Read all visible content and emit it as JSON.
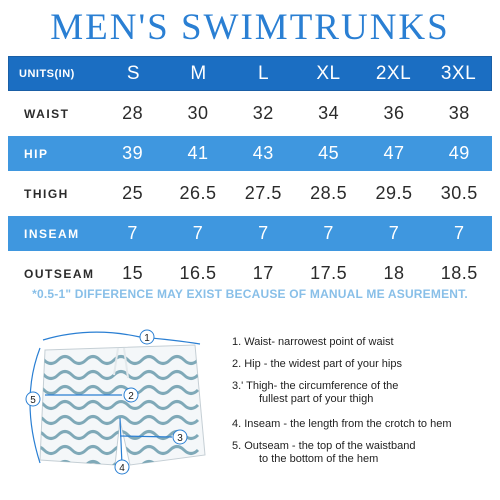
{
  "title": "MEN'S SWIMTRUNKS",
  "table": {
    "header": {
      "label": "UNITS(IN)",
      "values": [
        "S",
        "M",
        "L",
        "XL",
        "2XL",
        "3XL"
      ]
    },
    "rows": [
      {
        "label": "WAIST",
        "values": [
          "28",
          "30",
          "32",
          "34",
          "36",
          "38"
        ]
      },
      {
        "label": "HIP",
        "values": [
          "39",
          "41",
          "43",
          "45",
          "47",
          "49"
        ]
      },
      {
        "label": "THIGH",
        "values": [
          "25",
          "26.5",
          "27.5",
          "28.5",
          "29.5",
          "30.5"
        ]
      },
      {
        "label": "INSEAM",
        "values": [
          "7",
          "7",
          "7",
          "7",
          "7",
          "7"
        ]
      },
      {
        "label": "OUTSEAM",
        "values": [
          "15",
          "16.5",
          "17",
          "17.5",
          "18",
          "18.5"
        ]
      }
    ]
  },
  "note": "*0.5-1\" DIFFERENCE MAY EXIST BECAUSE OF MANUAL ME ASUREMENT.",
  "markers": [
    "1",
    "2",
    "3",
    "4",
    "5"
  ],
  "steps": [
    {
      "line1": "1. Waist- narrowest point of waist"
    },
    {
      "line1": "2. Hip - the widest part of your hips"
    },
    {
      "line1": "3.' Thigh- the circumference of the",
      "line2": "fullest part of your thigh"
    },
    {
      "line1": "4. Inseam - the length from the crotch to hem"
    },
    {
      "line1": "5. Outseam - the top of the waistband",
      "line2": "to the bottom of the hem"
    }
  ],
  "colors": {
    "title": "#2a7fd3",
    "header": "#1b6ec2",
    "alt_row": "#3f97df",
    "note": "#88bfe8",
    "pattern": "#7fa9b8"
  }
}
